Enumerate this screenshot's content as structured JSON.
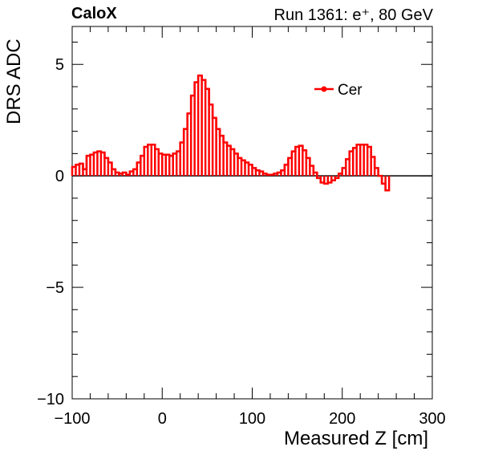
{
  "header": {
    "brand": "CaloX",
    "run_label": "Run 1361: e⁺, 80 GeV"
  },
  "chart_data": {
    "type": "line",
    "style": "step-histogram",
    "xlabel": "Measured Z [cm]",
    "ylabel": "DRS ADC",
    "xlim": [
      -100,
      300
    ],
    "ylim": [
      -10,
      6.7
    ],
    "x_ticks": [
      -100,
      0,
      100,
      200,
      300
    ],
    "y_ticks": [
      -10,
      -5,
      0,
      5
    ],
    "x_tick_labels": [
      "−100",
      "0",
      "100",
      "200",
      "300"
    ],
    "y_tick_labels": [
      "−10",
      "−5",
      "0",
      "5"
    ],
    "legend_placement": "top-right",
    "bin_width": 4,
    "series": [
      {
        "name": "Cer",
        "color": "#ff0000",
        "x_start": -100,
        "values": [
          0.4,
          0.5,
          0.55,
          0.3,
          0.9,
          0.95,
          1.05,
          1.1,
          1.05,
          0.8,
          0.6,
          0.3,
          0.15,
          0.1,
          0.15,
          0.05,
          0.2,
          0.3,
          0.6,
          0.9,
          1.3,
          1.4,
          1.4,
          1.2,
          1.0,
          0.95,
          0.95,
          0.9,
          1.0,
          1.1,
          1.5,
          2.1,
          2.8,
          3.6,
          4.2,
          4.5,
          4.3,
          3.9,
          3.2,
          2.6,
          2.1,
          1.8,
          1.5,
          1.35,
          1.2,
          1.0,
          0.8,
          0.7,
          0.6,
          0.5,
          0.35,
          0.25,
          0.2,
          0.1,
          0.05,
          0.05,
          0.1,
          0.15,
          0.25,
          0.5,
          0.8,
          1.1,
          1.3,
          1.35,
          1.15,
          0.8,
          0.45,
          0.15,
          -0.1,
          -0.3,
          -0.35,
          -0.3,
          -0.2,
          -0.1,
          0.1,
          0.35,
          0.75,
          1.1,
          1.25,
          1.4,
          1.4,
          1.4,
          1.3,
          0.85,
          0.35,
          0.0,
          -0.35,
          -0.65
        ]
      }
    ]
  }
}
